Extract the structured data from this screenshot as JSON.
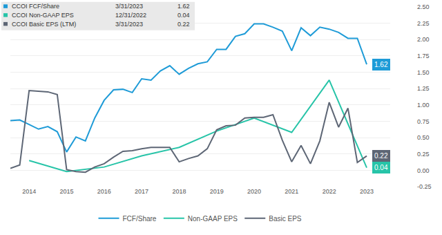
{
  "chart_data": {
    "type": "line",
    "categories": [
      null,
      null,
      "2014",
      null,
      null,
      null,
      "2015",
      null,
      null,
      null,
      "2016",
      null,
      null,
      null,
      "2017",
      null,
      null,
      null,
      "2018",
      null,
      null,
      null,
      "2019",
      null,
      null,
      null,
      "2020",
      null,
      null,
      null,
      "2021",
      null,
      null,
      null,
      "2022",
      null,
      null,
      null,
      "2023"
    ],
    "series": [
      {
        "name": "FCF/Share",
        "label": "CCOI FCF/Share",
        "date": "3/31/2023",
        "color": "#1e9bd7",
        "values": [
          0.76,
          0.77,
          0.7,
          0.63,
          0.67,
          0.59,
          0.28,
          0.51,
          0.45,
          0.8,
          1.07,
          1.23,
          1.24,
          1.19,
          1.4,
          1.38,
          1.52,
          1.6,
          1.47,
          1.56,
          1.63,
          1.66,
          1.85,
          1.85,
          2.05,
          2.09,
          2.24,
          2.24,
          2.19,
          2.13,
          1.83,
          2.18,
          2.06,
          2.19,
          2.16,
          2.11,
          2.02,
          2.02,
          1.62
        ]
      },
      {
        "name": "Non-GAAP EPS",
        "label": "CCOI Non-GAAP EPS",
        "date": "12/31/2022",
        "color": "#27c4a8",
        "values": [
          null,
          null,
          0.15,
          null,
          null,
          null,
          -0.02,
          null,
          null,
          null,
          0.05,
          null,
          null,
          null,
          0.22,
          null,
          null,
          null,
          0.35,
          null,
          null,
          null,
          0.6,
          null,
          null,
          null,
          0.8,
          null,
          null,
          null,
          0.58,
          null,
          null,
          null,
          1.38,
          null,
          null,
          null,
          0.04
        ]
      },
      {
        "name": "Basic EPS",
        "label": "CCOI Basic EPS (LTM)",
        "date": "3/31/2023",
        "color": "#5d6675",
        "values": [
          0.03,
          0.08,
          1.22,
          1.21,
          1.2,
          1.16,
          0.01,
          -0.02,
          -0.03,
          0.05,
          0.1,
          0.2,
          0.29,
          0.3,
          0.33,
          0.35,
          0.35,
          0.35,
          0.13,
          0.18,
          0.22,
          0.33,
          0.62,
          0.68,
          0.69,
          0.8,
          0.81,
          0.81,
          0.85,
          0.46,
          0.13,
          0.38,
          0.1,
          0.45,
          1.04,
          0.66,
          0.95,
          0.12,
          0.22
        ]
      }
    ],
    "ylim": [
      -0.25,
      2.5
    ],
    "yticks": [
      -0.25,
      {
        "value": 0,
        "label": "0.00"
      },
      0.25,
      {
        "value": 0.5,
        "label": "0.50"
      },
      0.75,
      {
        "value": 1,
        "label": "1.00"
      },
      1.25,
      {
        "value": 1.5,
        "label": "1.50"
      },
      1.75,
      {
        "value": 2,
        "label": "2.00"
      },
      2.25,
      {
        "value": 2.5,
        "label": "2.50"
      }
    ],
    "grid": true,
    "legend": "bottom"
  }
}
